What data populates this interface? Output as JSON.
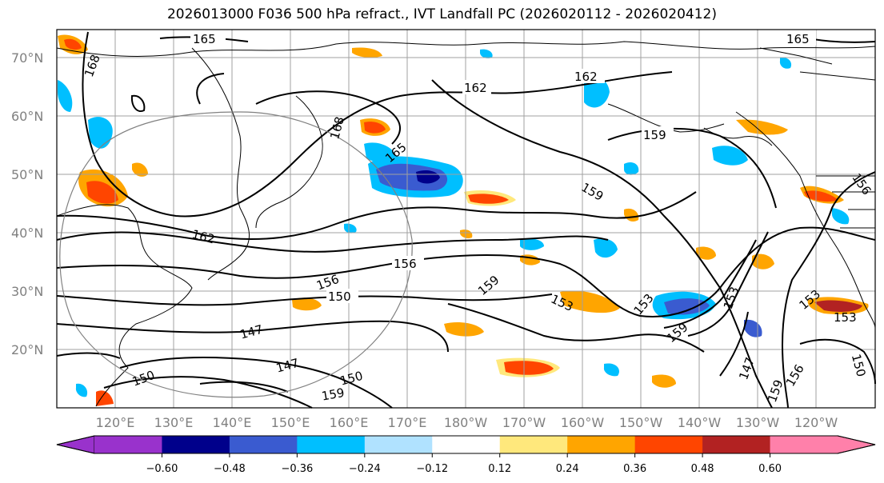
{
  "title": "2026013000 F036 500 hPa refract., IVT Landfall PC (2026020112 - 2026020412)",
  "lat_labels": [
    "70°N",
    "60°N",
    "50°N",
    "40°N",
    "30°N",
    "20°N"
  ],
  "lon_labels": [
    "120°E",
    "130°E",
    "140°E",
    "150°E",
    "160°E",
    "170°E",
    "180°W",
    "170°W",
    "160°W",
    "150°W",
    "140°W",
    "130°W",
    "120°W"
  ],
  "contour_labels": [
    "165",
    "165",
    "168",
    "168",
    "162",
    "162",
    "162",
    "165",
    "159",
    "159",
    "159",
    "156",
    "156",
    "156",
    "150",
    "147",
    "147",
    "150",
    "150",
    "159",
    "153",
    "153",
    "159",
    "153",
    "147",
    "159",
    "156",
    "153",
    "153",
    "150"
  ],
  "colorbar": {
    "ticks": [
      "−0.60",
      "−0.48",
      "−0.36",
      "−0.24",
      "−0.12",
      "0.12",
      "0.24",
      "0.36",
      "0.48",
      "0.60"
    ],
    "colors": [
      "#9932cc",
      "#00008b",
      "#3a5bd0",
      "#00bfff",
      "#b0e2ff",
      "#ffffff",
      "#ffe87c",
      "#ffa500",
      "#ff4500",
      "#b22222",
      "#ff80aa"
    ]
  }
}
